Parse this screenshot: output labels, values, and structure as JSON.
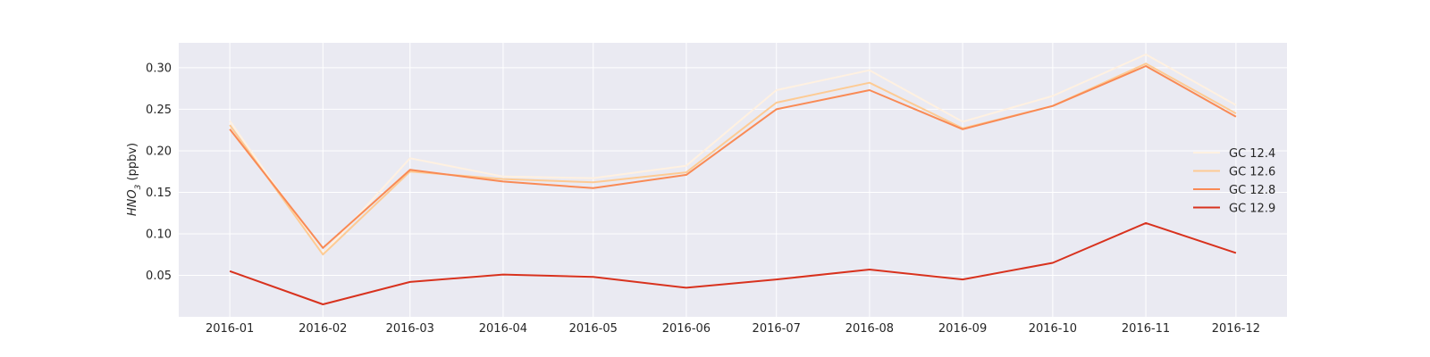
{
  "chart_data": {
    "type": "line",
    "title": "",
    "xlabel": "",
    "ylabel": {
      "main": "HNO",
      "sub": "3",
      "unit": " (ppbv)"
    },
    "x": [
      "2016-01",
      "2016-02",
      "2016-03",
      "2016-04",
      "2016-05",
      "2016-06",
      "2016-07",
      "2016-08",
      "2016-09",
      "2016-10",
      "2016-11",
      "2016-12"
    ],
    "xlim": [
      "2015-12-15",
      "2016-12-18"
    ],
    "ylim": [
      0.0,
      0.33
    ],
    "yticks": [
      0.05,
      0.1,
      0.15,
      0.2,
      0.25,
      0.3
    ],
    "ytick_labels": [
      "0.05",
      "0.10",
      "0.15",
      "0.20",
      "0.25",
      "0.30"
    ],
    "grid": true,
    "legend_position": "right",
    "series": [
      {
        "name": "GC 12.4",
        "color": "#fff1e1",
        "values": [
          0.236,
          0.076,
          0.191,
          0.169,
          0.167,
          0.182,
          0.273,
          0.297,
          0.235,
          0.266,
          0.316,
          0.255
        ]
      },
      {
        "name": "GC 12.6",
        "color": "#fdcb94",
        "values": [
          0.231,
          0.075,
          0.175,
          0.166,
          0.162,
          0.174,
          0.258,
          0.282,
          0.227,
          0.254,
          0.305,
          0.245
        ]
      },
      {
        "name": "GC 12.8",
        "color": "#f98a55",
        "values": [
          0.226,
          0.083,
          0.177,
          0.163,
          0.155,
          0.171,
          0.25,
          0.273,
          0.226,
          0.254,
          0.302,
          0.241
        ]
      },
      {
        "name": "GC 12.9",
        "color": "#d8321e",
        "values": [
          0.055,
          0.015,
          0.042,
          0.051,
          0.048,
          0.035,
          0.045,
          0.057,
          0.045,
          0.065,
          0.113,
          0.077
        ]
      }
    ]
  }
}
